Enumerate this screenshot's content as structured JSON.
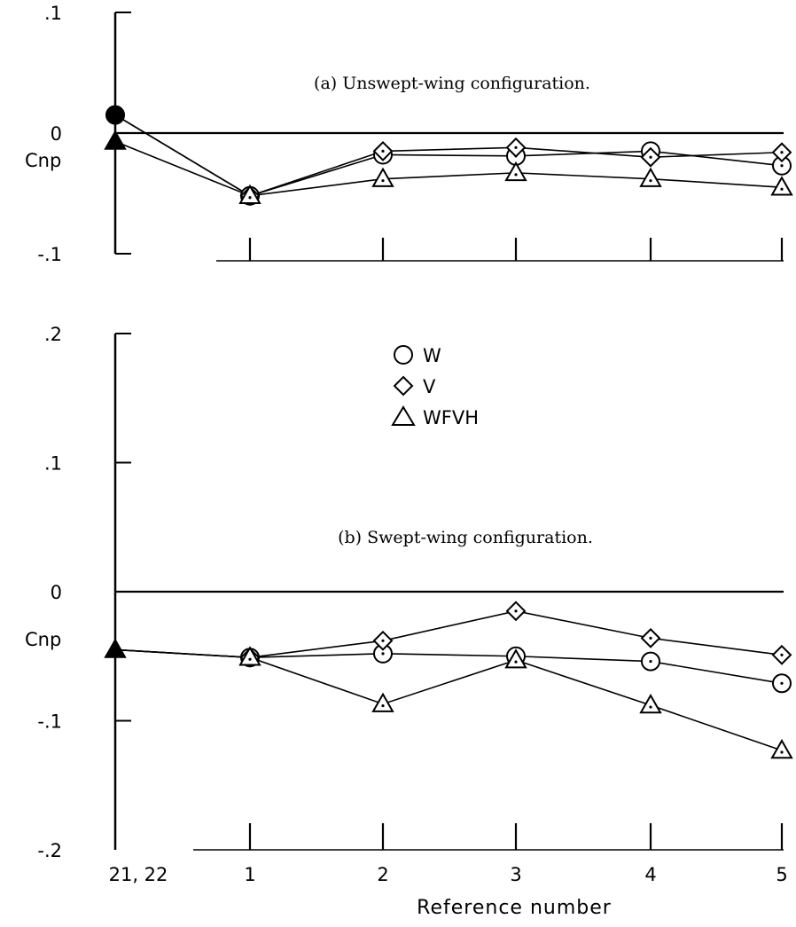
{
  "chart_data": [
    {
      "type": "line",
      "title": "(a) Unswept-wing configuration.",
      "ylabel": "Cnp",
      "xlabel": "",
      "ylim": [
        -0.1,
        0.1
      ],
      "yticks": [
        ".1",
        "0",
        "-.1"
      ],
      "categories": [
        "21, 22",
        "1",
        "2",
        "3",
        "4",
        "5"
      ],
      "grid": false,
      "series": [
        {
          "name": "W",
          "marker": "circle",
          "values": [
            0.015,
            -0.052,
            -0.018,
            -0.019,
            -0.015,
            -0.027
          ]
        },
        {
          "name": "V",
          "marker": "diamond",
          "values": [
            0.015,
            -0.052,
            -0.015,
            -0.012,
            -0.02,
            -0.016
          ]
        },
        {
          "name": "WFVH",
          "marker": "triangle",
          "values": [
            -0.007,
            -0.052,
            -0.038,
            -0.033,
            -0.038,
            -0.045
          ]
        }
      ]
    },
    {
      "type": "line",
      "title": "(b) Swept-wing configuration.",
      "ylabel": "Cnp",
      "xlabel": "Reference number",
      "ylim": [
        -0.2,
        0.2
      ],
      "yticks": [
        ".2",
        ".1",
        "0",
        "-.1",
        "-.2"
      ],
      "categories": [
        "21, 22",
        "1",
        "2",
        "3",
        "4",
        "5"
      ],
      "grid": false,
      "legend": {
        "position": "upper-center",
        "entries": [
          "W",
          "V",
          "WFVH"
        ]
      },
      "series": [
        {
          "name": "W",
          "marker": "circle",
          "values": [
            -0.045,
            -0.051,
            -0.048,
            -0.05,
            -0.054,
            -0.071
          ]
        },
        {
          "name": "V",
          "marker": "diamond",
          "values": [
            -0.045,
            -0.051,
            -0.038,
            -0.015,
            -0.036,
            -0.049
          ]
        },
        {
          "name": "WFVH",
          "marker": "triangle",
          "values": [
            -0.045,
            -0.051,
            -0.087,
            -0.053,
            -0.088,
            -0.123
          ]
        }
      ]
    }
  ]
}
